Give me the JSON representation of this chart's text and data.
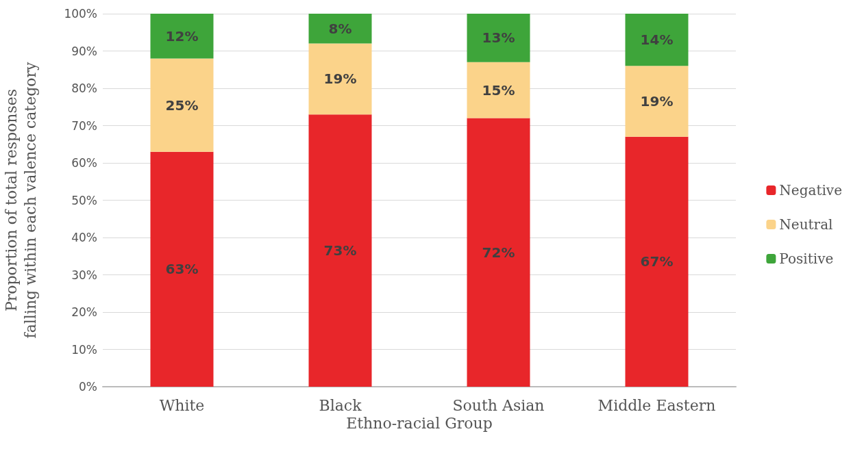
{
  "chart_data": {
    "type": "bar",
    "stacked": true,
    "xlabel": "Ethno-racial Group",
    "ylabel": "Proportion of total responses falling within each valence category",
    "categories": [
      "White",
      "Black",
      "South Asian",
      "Middle Eastern"
    ],
    "series": [
      {
        "name": "Negative",
        "color": "#e8262a",
        "values": [
          63,
          73,
          72,
          67
        ],
        "value_labels": [
          "63%",
          "73%",
          "72%",
          "67%"
        ]
      },
      {
        "name": "Neutral",
        "color": "#fbd38a",
        "values": [
          25,
          19,
          15,
          19
        ],
        "value_labels": [
          "25%",
          "19%",
          "15%",
          "19%"
        ]
      },
      {
        "name": "Positive",
        "color": "#3ea53a",
        "values": [
          12,
          8,
          13,
          14
        ],
        "value_labels": [
          "12%",
          "8%",
          "13%",
          "14%"
        ]
      }
    ],
    "ylim": [
      0,
      100
    ],
    "yticks": [
      {
        "value": 0,
        "label": "0%"
      },
      {
        "value": 10,
        "label": "10%"
      },
      {
        "value": 20,
        "label": "20%"
      },
      {
        "value": 30,
        "label": "30%"
      },
      {
        "value": 40,
        "label": "40%"
      },
      {
        "value": 50,
        "label": "50%"
      },
      {
        "value": 60,
        "label": "60%"
      },
      {
        "value": 70,
        "label": "70%"
      },
      {
        "value": 80,
        "label": "80%"
      },
      {
        "value": 90,
        "label": "90%"
      },
      {
        "value": 100,
        "label": "100%"
      }
    ],
    "grid": "y",
    "legend": "right"
  }
}
